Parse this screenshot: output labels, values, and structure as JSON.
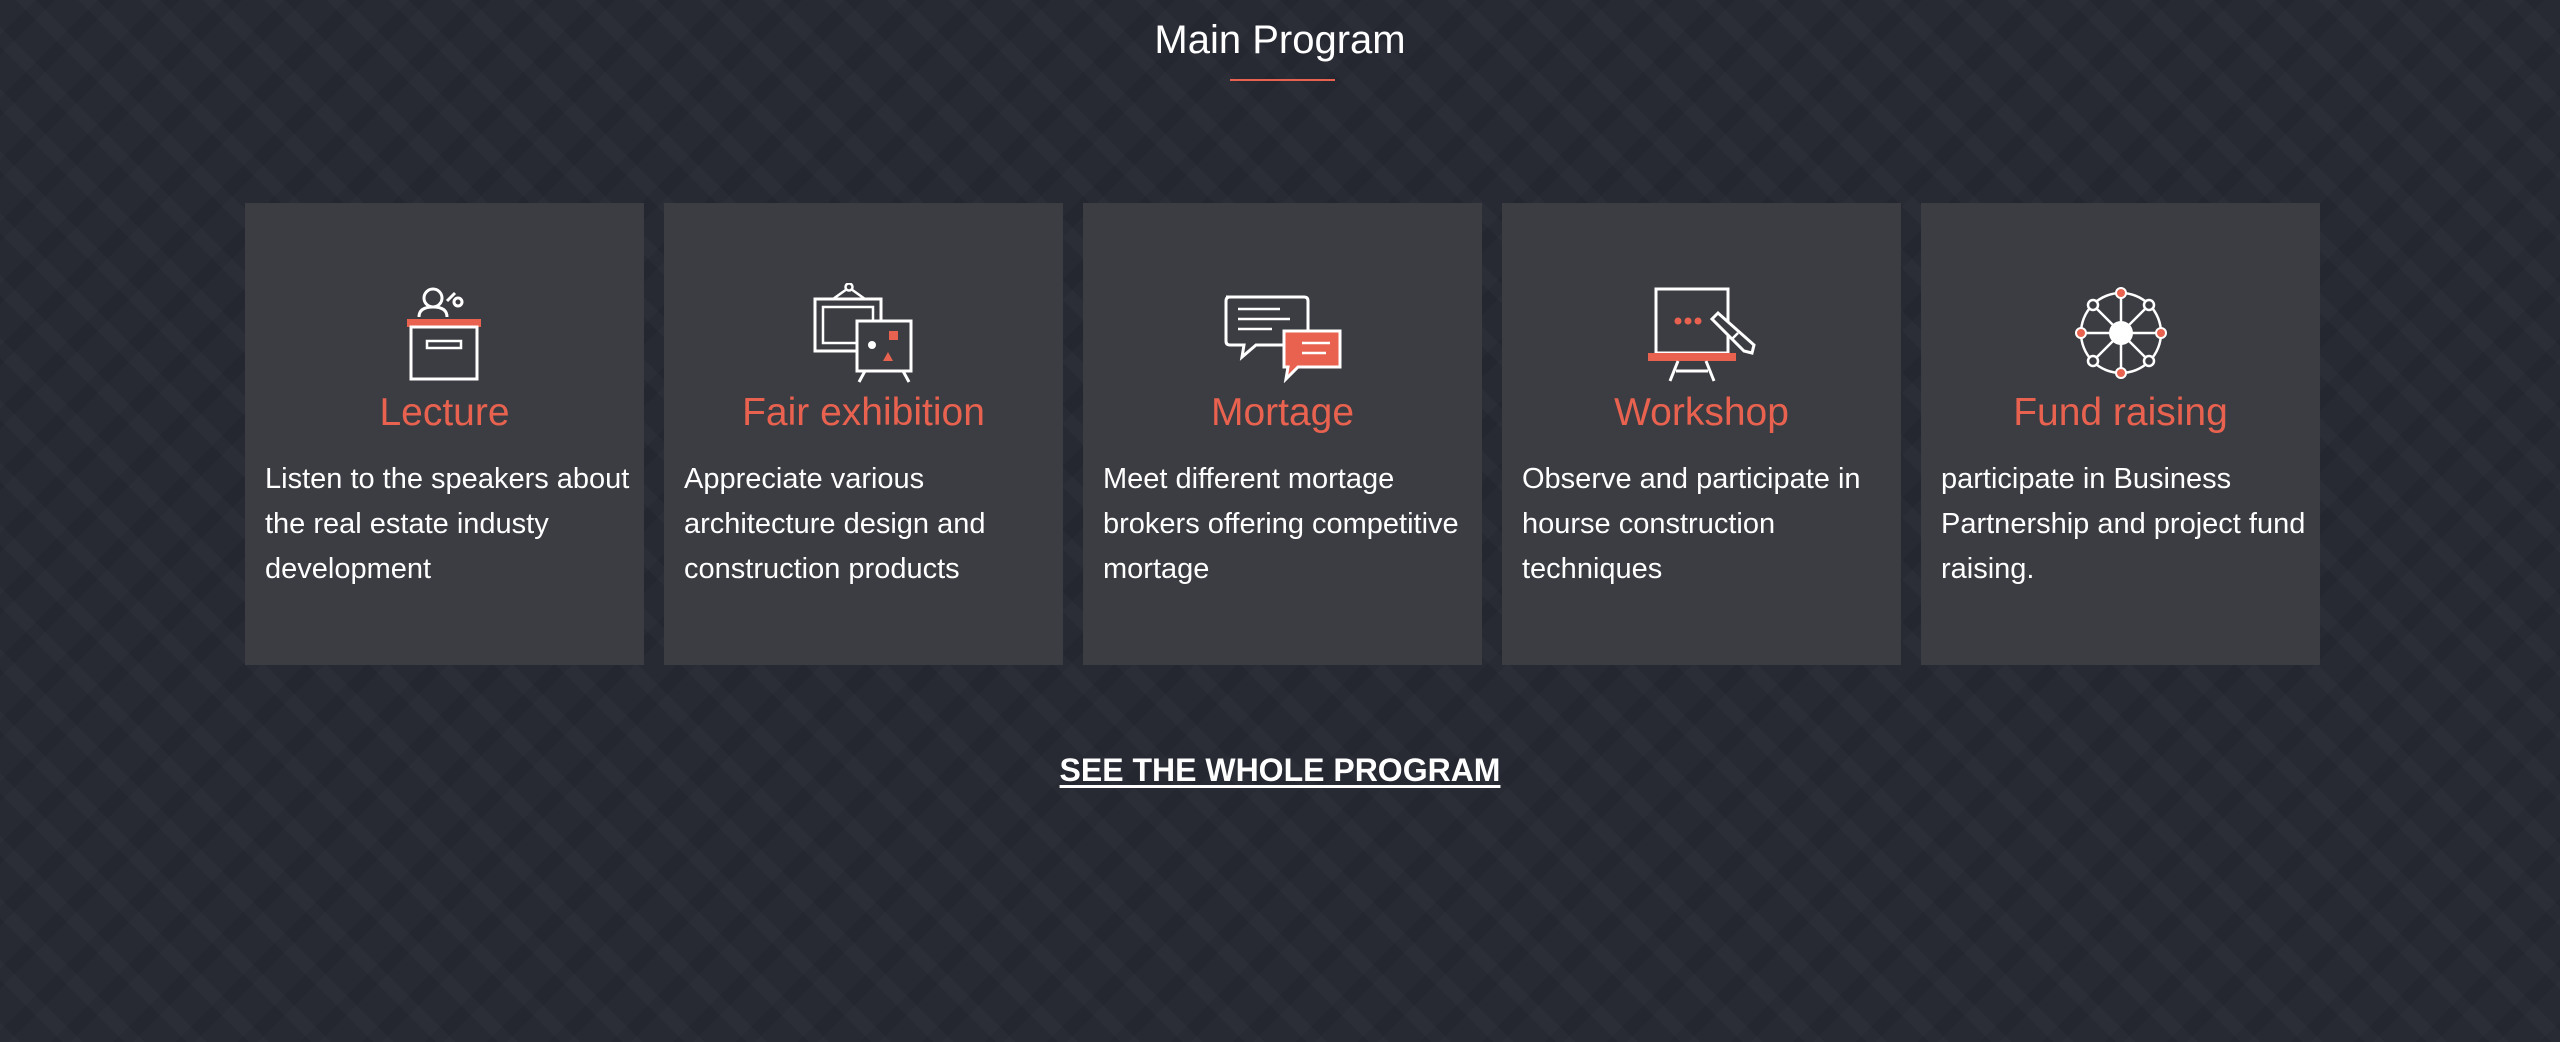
{
  "section": {
    "title": "Main Program"
  },
  "colors": {
    "accent": "#e8624f",
    "card_background": "#3c3d43",
    "page_background": "#272a33",
    "text": "#ffffff"
  },
  "cards": [
    {
      "icon": "podium-icon",
      "title": "Lecture",
      "text": "Listen to the speakers about the real estate industy development"
    },
    {
      "icon": "exhibition-easel-icon",
      "title": "Fair exhibition",
      "text": "Appreciate various architecture design and construction products"
    },
    {
      "icon": "chat-bubbles-icon",
      "title": "Mortage",
      "text": "Meet different mortage brokers offering competitive mortage"
    },
    {
      "icon": "whiteboard-icon",
      "title": "Workshop",
      "text": "Observe and participate in hourse construction techniques"
    },
    {
      "icon": "network-hub-icon",
      "title": "Fund raising",
      "text": "participate in Business Partnership and project fund raising."
    }
  ],
  "cta": {
    "label": "SEE THE WHOLE PROGRAM"
  }
}
